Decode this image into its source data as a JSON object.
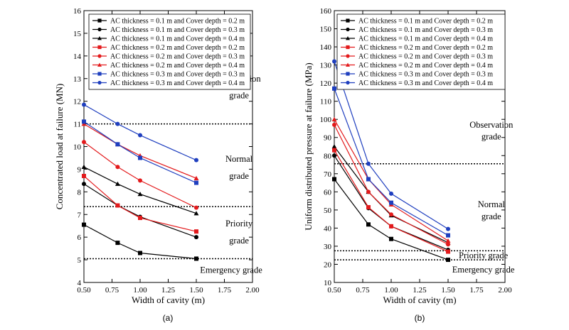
{
  "chart_data": [
    {
      "type": "line",
      "panel_label": "(a)",
      "xlabel": "Width of cavity (m)",
      "ylabel": "Concentrated load at failure (MN)",
      "xlim": [
        0.5,
        2.0
      ],
      "ylim": [
        4,
        16
      ],
      "xticks": [
        0.5,
        0.75,
        1.0,
        1.25,
        1.5,
        1.75,
        2.0
      ],
      "xtick_labels": [
        "0.50",
        "0.75",
        "1.00",
        "1.25",
        "1.50",
        "1.75",
        "2.00"
      ],
      "yticks": [
        4,
        5,
        6,
        7,
        8,
        9,
        10,
        11,
        12,
        13,
        14,
        15,
        16
      ],
      "ytick_labels": [
        "4",
        "5",
        "6",
        "7",
        "8",
        "9",
        "10",
        "11",
        "12",
        "13",
        "14",
        "15",
        "16"
      ],
      "legend_position": "top-right",
      "x": [
        0.5,
        0.8,
        1.0,
        1.5
      ],
      "series": [
        {
          "name": "AC thickness = 0.1 m and Cover depth = 0.2 m",
          "color": "#000000",
          "marker": "square",
          "values": [
            6.55,
            5.75,
            5.3,
            5.05
          ]
        },
        {
          "name": "AC thickness = 0.1 m and Cover depth = 0.3 m",
          "color": "#000000",
          "marker": "circle",
          "values": [
            8.35,
            7.4,
            6.9,
            6.0
          ]
        },
        {
          "name": "AC thickness = 0.1 m and Cover depth = 0.4 m",
          "color": "#000000",
          "marker": "triangle",
          "values": [
            9.1,
            8.35,
            7.9,
            7.05
          ]
        },
        {
          "name": "AC thickness = 0.2 m and Cover depth = 0.2 m",
          "color": "#e31a1c",
          "marker": "square",
          "values": [
            8.7,
            7.4,
            6.85,
            6.25
          ]
        },
        {
          "name": "AC thickness = 0.2 m and Cover depth = 0.3 m",
          "color": "#e31a1c",
          "marker": "circle",
          "values": [
            10.2,
            9.1,
            8.5,
            7.3
          ]
        },
        {
          "name": "AC thickness = 0.2 m and Cover depth = 0.4 m",
          "color": "#e31a1c",
          "marker": "triangle",
          "values": [
            11.0,
            10.1,
            9.6,
            8.6
          ]
        },
        {
          "name": "AC thickness = 0.3 m and Cover depth = 0.3 m",
          "color": "#1f3fbf",
          "marker": "square",
          "values": [
            11.1,
            10.1,
            9.5,
            8.4
          ]
        },
        {
          "name": "AC thickness = 0.3 m and Cover depth = 0.4 m",
          "color": "#1f3fbf",
          "marker": "circle",
          "values": [
            11.85,
            11.0,
            10.5,
            9.4
          ]
        }
      ],
      "thresholds": [
        11.0,
        7.35,
        5.05
      ],
      "grade_labels": [
        {
          "lines": [
            "Observation",
            "grade"
          ],
          "x": 1.88,
          "y": [
            13.0,
            12.25
          ]
        },
        {
          "lines": [
            "Normal",
            "grade"
          ],
          "x": 1.88,
          "y": [
            9.45,
            8.7
          ]
        },
        {
          "lines": [
            "Priority",
            "grade"
          ],
          "x": 1.88,
          "y": [
            6.6,
            5.85
          ]
        },
        {
          "lines": [
            "Emergency grade"
          ],
          "x": 1.81,
          "y": [
            4.55
          ]
        }
      ]
    },
    {
      "type": "line",
      "panel_label": "(b)",
      "xlabel": "Width of cavity (m)",
      "ylabel": "Uniform distributed pressure at failure (MPa)",
      "xlim": [
        0.5,
        2.0
      ],
      "ylim": [
        10,
        160
      ],
      "xticks": [
        0.5,
        0.75,
        1.0,
        1.25,
        1.5,
        1.75,
        2.0
      ],
      "xtick_labels": [
        "0.50",
        "0.75",
        "1.00",
        "1.25",
        "1.50",
        "1.75",
        "2.00"
      ],
      "yticks": [
        10,
        20,
        30,
        40,
        50,
        60,
        70,
        80,
        90,
        100,
        110,
        120,
        130,
        140,
        150,
        160
      ],
      "ytick_labels": [
        "10",
        "20",
        "30",
        "40",
        "50",
        "60",
        "70",
        "80",
        "90",
        "100",
        "110",
        "120",
        "130",
        "140",
        "150",
        "160"
      ],
      "legend_position": "top-right",
      "x": [
        0.5,
        0.8,
        1.0,
        1.5
      ],
      "series": [
        {
          "name": "AC thickness = 0.1 m and Cover depth = 0.2 m",
          "color": "#000000",
          "marker": "square",
          "values": [
            67,
            42,
            34,
            22.5
          ]
        },
        {
          "name": "AC thickness = 0.1 m and Cover depth = 0.3 m",
          "color": "#000000",
          "marker": "circle",
          "values": [
            80,
            51,
            41,
            28
          ]
        },
        {
          "name": "AC thickness = 0.1 m and Cover depth = 0.4 m",
          "color": "#000000",
          "marker": "triangle",
          "values": [
            85,
            60,
            47,
            32
          ]
        },
        {
          "name": "AC thickness = 0.2 m and Cover depth = 0.2 m",
          "color": "#e31a1c",
          "marker": "square",
          "values": [
            83,
            51.5,
            41,
            27
          ]
        },
        {
          "name": "AC thickness = 0.2 m and Cover depth = 0.3 m",
          "color": "#e31a1c",
          "marker": "circle",
          "values": [
            97,
            60,
            47.5,
            31
          ]
        },
        {
          "name": "AC thickness = 0.2 m and Cover depth = 0.4 m",
          "color": "#e31a1c",
          "marker": "triangle",
          "values": [
            100,
            67,
            53,
            33
          ]
        },
        {
          "name": "AC thickness = 0.3 m and Cover depth = 0.3 m",
          "color": "#1f3fbf",
          "marker": "square",
          "values": [
            117,
            67,
            54,
            36
          ]
        },
        {
          "name": "AC thickness = 0.3 m and Cover depth = 0.4 m",
          "color": "#1f3fbf",
          "marker": "circle",
          "values": [
            132,
            75.5,
            59,
            39.5
          ]
        }
      ],
      "thresholds": [
        75.5,
        27.5,
        22.5
      ],
      "grade_labels": [
        {
          "lines": [
            "Observation",
            "grade"
          ],
          "x": 1.88,
          "y": [
            97,
            90.5
          ]
        },
        {
          "lines": [
            "Normal",
            "grade"
          ],
          "x": 1.88,
          "y": [
            53,
            46.5
          ]
        },
        {
          "lines": [
            "Priority grade"
          ],
          "x": 1.81,
          "y": [
            24.8
          ]
        },
        {
          "lines": [
            "Emergency grade"
          ],
          "x": 1.81,
          "y": [
            17
          ]
        }
      ]
    }
  ]
}
